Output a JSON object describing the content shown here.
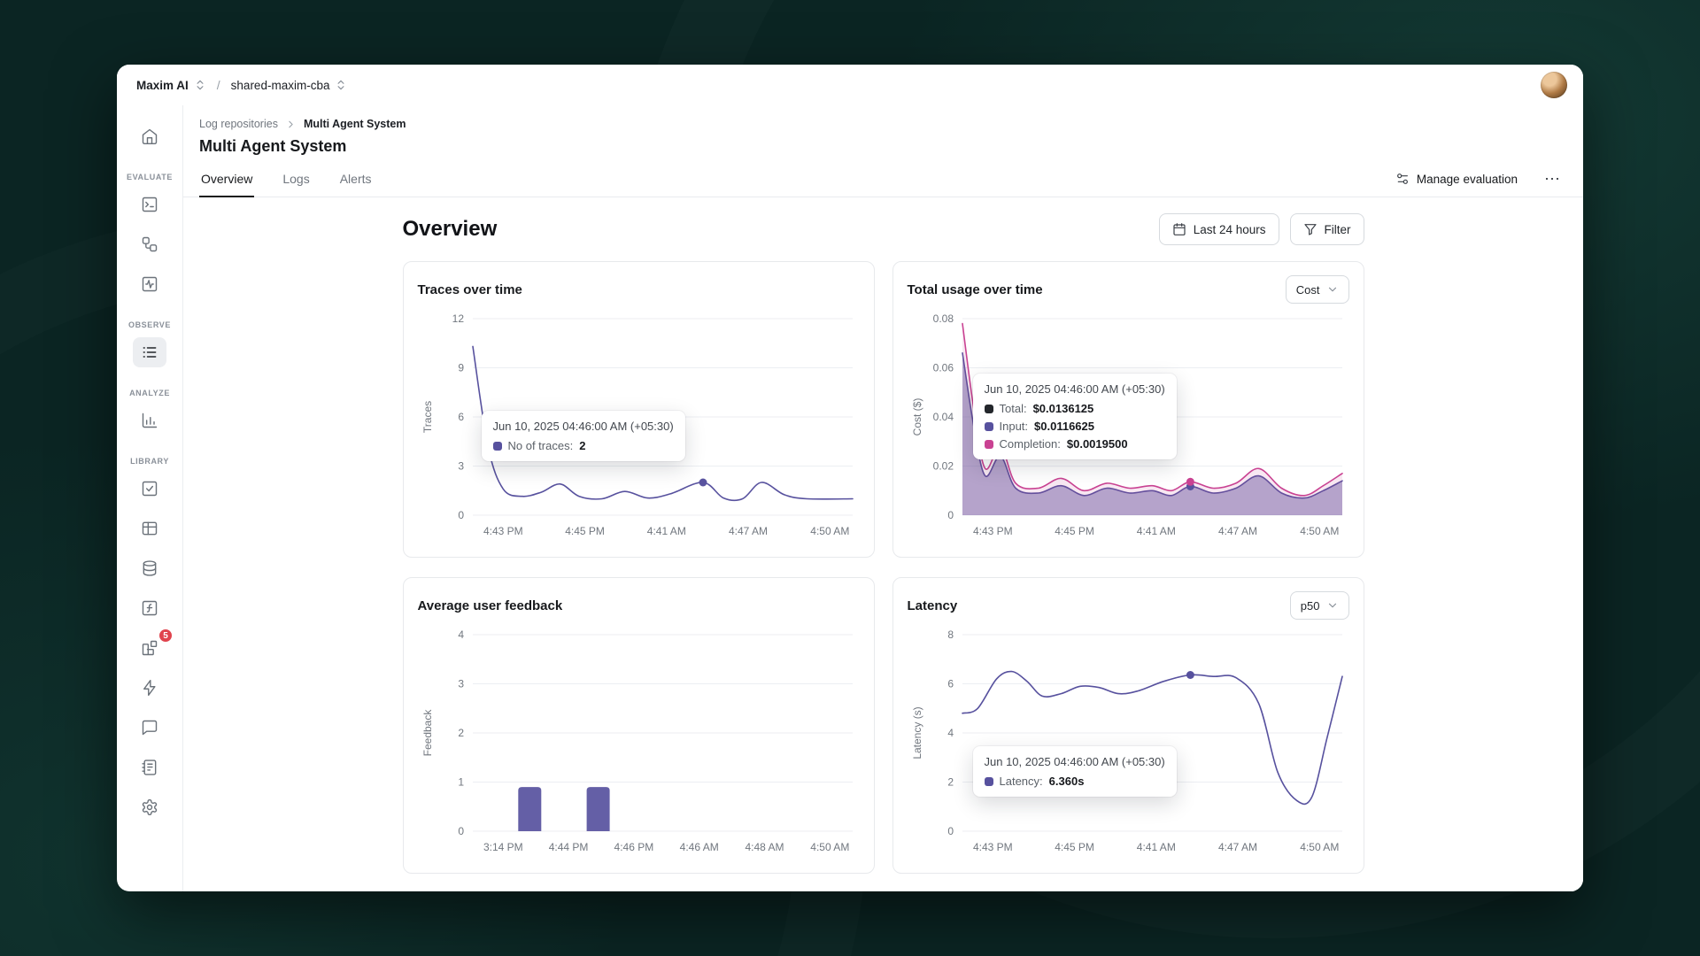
{
  "topbar": {
    "org": "Maxim AI",
    "separator": "/",
    "workspace": "shared-maxim-cba"
  },
  "sidebar": {
    "sections": {
      "evaluate": "EVALUATE",
      "observe": "OBSERVE",
      "analyze": "ANALYZE",
      "library": "LIBRARY"
    },
    "badge_count": "5"
  },
  "page": {
    "breadcrumb": {
      "parent": "Log repositories",
      "current": "Multi Agent System"
    },
    "title": "Multi Agent System",
    "tabs": [
      {
        "label": "Overview"
      },
      {
        "label": "Logs"
      },
      {
        "label": "Alerts"
      }
    ],
    "active_tab": "Overview",
    "manage_evaluation": "Manage evaluation",
    "more": "⋯"
  },
  "content": {
    "heading": "Overview",
    "time_range": "Last 24 hours",
    "filter": "Filter"
  },
  "colors": {
    "accent_purple": "#57519e",
    "accent_pink": "#c94292",
    "total_black": "#23262b"
  },
  "chart_data": [
    {
      "type": "line",
      "title": "Traces over time",
      "ylabel": "Traces",
      "ylim": [
        0,
        12
      ],
      "yticks": [
        0,
        3,
        6,
        9,
        12
      ],
      "xticklabels": [
        "4:43 PM",
        "4:45 PM",
        "4:41 AM",
        "4:47 AM",
        "4:50 AM"
      ],
      "series": [
        {
          "name": "No of traces",
          "color": "#57519e",
          "points": [
            [
              0,
              10.3
            ],
            [
              0.04,
              4.2
            ],
            [
              0.08,
              1.6
            ],
            [
              0.13,
              1.15
            ],
            [
              0.18,
              1.4
            ],
            [
              0.23,
              1.9
            ],
            [
              0.28,
              1.15
            ],
            [
              0.34,
              1.0
            ],
            [
              0.4,
              1.45
            ],
            [
              0.46,
              1.05
            ],
            [
              0.52,
              1.3
            ],
            [
              0.606,
              2.0
            ],
            [
              0.66,
              1.05
            ],
            [
              0.71,
              1.0
            ],
            [
              0.76,
              2.0
            ],
            [
              0.82,
              1.25
            ],
            [
              0.88,
              1.0
            ],
            [
              1,
              1.0
            ]
          ]
        }
      ],
      "markers": [
        {
          "x": 0.606,
          "y": 2,
          "color": "#57519e"
        }
      ],
      "tooltip": {
        "title": "Jun 10, 2025 04:46:00 AM (+05:30)",
        "rows": [
          {
            "color": "#57519e",
            "label": "No of traces:",
            "value": "2"
          }
        ]
      }
    },
    {
      "type": "line",
      "title": "Total usage over time",
      "control": "Cost",
      "ylabel": "Cost ($)",
      "ylim": [
        0,
        0.08
      ],
      "yticks": [
        0,
        0.02,
        0.04,
        0.06,
        0.08
      ],
      "xticklabels": [
        "4:43 PM",
        "4:45 PM",
        "4:41 AM",
        "4:47 AM",
        "4:50 AM"
      ],
      "series": [
        {
          "name": "Input",
          "color": "#57519e",
          "fill": true,
          "fill_opacity": 0.45,
          "points": [
            [
              0,
              0.066
            ],
            [
              0.03,
              0.036
            ],
            [
              0.06,
              0.016
            ],
            [
              0.1,
              0.024
            ],
            [
              0.14,
              0.011
            ],
            [
              0.2,
              0.009
            ],
            [
              0.26,
              0.012
            ],
            [
              0.32,
              0.008
            ],
            [
              0.38,
              0.011
            ],
            [
              0.44,
              0.009
            ],
            [
              0.5,
              0.01
            ],
            [
              0.55,
              0.008
            ],
            [
              0.6,
              0.0117
            ],
            [
              0.66,
              0.009
            ],
            [
              0.72,
              0.011
            ],
            [
              0.78,
              0.016
            ],
            [
              0.84,
              0.009
            ],
            [
              0.9,
              0.007
            ],
            [
              0.95,
              0.01
            ],
            [
              1,
              0.014
            ]
          ]
        },
        {
          "name": "Completion",
          "color": "#c94292",
          "fill": true,
          "fill_opacity": 0.12,
          "points": [
            [
              0,
              0.078
            ],
            [
              0.03,
              0.043
            ],
            [
              0.06,
              0.019
            ],
            [
              0.1,
              0.028
            ],
            [
              0.14,
              0.013
            ],
            [
              0.2,
              0.011
            ],
            [
              0.26,
              0.015
            ],
            [
              0.32,
              0.01
            ],
            [
              0.38,
              0.013
            ],
            [
              0.44,
              0.011
            ],
            [
              0.5,
              0.012
            ],
            [
              0.55,
              0.01
            ],
            [
              0.6,
              0.0136
            ],
            [
              0.66,
              0.011
            ],
            [
              0.72,
              0.013
            ],
            [
              0.78,
              0.019
            ],
            [
              0.84,
              0.011
            ],
            [
              0.9,
              0.008
            ],
            [
              0.95,
              0.012
            ],
            [
              1,
              0.017
            ]
          ]
        }
      ],
      "markers": [
        {
          "x": 0.6,
          "y": 0.0117,
          "color": "#57519e"
        },
        {
          "x": 0.6,
          "y": 0.0136,
          "color": "#c94292"
        }
      ],
      "tooltip": {
        "title": "Jun 10, 2025 04:46:00 AM (+05:30)",
        "rows": [
          {
            "color": "#23262b",
            "label": "Total:",
            "value": "$0.0136125"
          },
          {
            "color": "#57519e",
            "label": "Input:",
            "value": "$0.0116625"
          },
          {
            "color": "#c94292",
            "label": "Completion:",
            "value": "$0.0019500"
          }
        ]
      }
    },
    {
      "type": "bar",
      "title": "Average user feedback",
      "ylabel": "Feedback",
      "ylim": [
        0,
        4
      ],
      "yticks": [
        0,
        1,
        2,
        3,
        4
      ],
      "xticklabels": [
        "3:14 PM",
        "4:44 PM",
        "4:46 PM",
        "4:46 AM",
        "4:48 AM",
        "4:50 AM"
      ],
      "bar_color": "#57519e",
      "bars": [
        {
          "x": 0.15,
          "value": 0.9
        },
        {
          "x": 0.33,
          "value": 0.9
        }
      ]
    },
    {
      "type": "line",
      "title": "Latency",
      "control": "p50",
      "ylabel": "Latency (s)",
      "ylim": [
        0,
        8
      ],
      "yticks": [
        0,
        2,
        4,
        6,
        8
      ],
      "xticklabels": [
        "4:43 PM",
        "4:45 PM",
        "4:41 AM",
        "4:47 AM",
        "4:50 AM"
      ],
      "series": [
        {
          "name": "Latency",
          "color": "#57519e",
          "points": [
            [
              0,
              4.8
            ],
            [
              0.04,
              5.0
            ],
            [
              0.09,
              6.2
            ],
            [
              0.13,
              6.5
            ],
            [
              0.17,
              6.1
            ],
            [
              0.21,
              5.5
            ],
            [
              0.26,
              5.6
            ],
            [
              0.31,
              5.9
            ],
            [
              0.36,
              5.85
            ],
            [
              0.41,
              5.6
            ],
            [
              0.46,
              5.7
            ],
            [
              0.53,
              6.1
            ],
            [
              0.6,
              6.36
            ],
            [
              0.66,
              6.3
            ],
            [
              0.72,
              6.25
            ],
            [
              0.78,
              5.2
            ],
            [
              0.83,
              2.4
            ],
            [
              0.88,
              1.25
            ],
            [
              0.92,
              1.4
            ],
            [
              0.96,
              3.8
            ],
            [
              1,
              6.3
            ]
          ]
        }
      ],
      "markers": [
        {
          "x": 0.6,
          "y": 6.36,
          "color": "#57519e"
        }
      ],
      "tooltip": {
        "title": "Jun 10, 2025 04:46:00 AM (+05:30)",
        "rows": [
          {
            "color": "#57519e",
            "label": "Latency:",
            "value": "6.360s"
          }
        ]
      }
    }
  ]
}
